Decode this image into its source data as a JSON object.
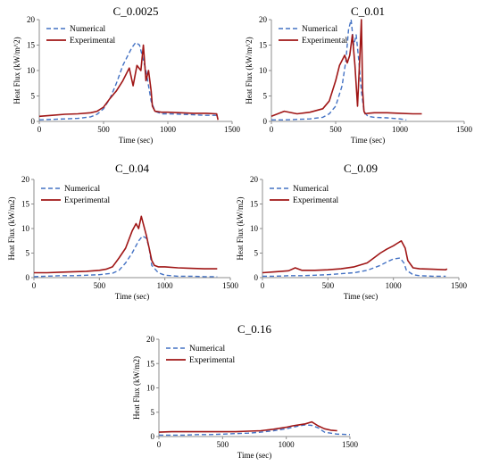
{
  "colors": {
    "numerical": "#4472c4",
    "experimental": "#a01616",
    "axis": "#8c8c8c"
  },
  "chart_data": [
    {
      "type": "line",
      "title": "C_0.0025",
      "xlabel": "Time (sec)",
      "ylabel": "Heat Flux (kW/m^2)",
      "xlim": [
        0,
        1500
      ],
      "ylim": [
        0,
        20
      ],
      "xticks": [
        "0",
        "500",
        "1000",
        "1500"
      ],
      "yticks": [
        "0",
        "5",
        "10",
        "15",
        "20"
      ],
      "legend_position": "top-left",
      "series": [
        {
          "name": "Numerical",
          "style": "dashed",
          "x": [
            0,
            100,
            200,
            300,
            400,
            450,
            500,
            550,
            600,
            650,
            700,
            720,
            750,
            780,
            800,
            830,
            850,
            870,
            900,
            950,
            1000,
            1100,
            1200,
            1300,
            1400
          ],
          "y": [
            0.3,
            0.4,
            0.5,
            0.6,
            0.9,
            1.4,
            2.5,
            4.5,
            7.5,
            11.0,
            13.5,
            14.5,
            15.5,
            15.0,
            13.0,
            10.0,
            7.0,
            4.0,
            2.0,
            1.5,
            1.5,
            1.4,
            1.3,
            1.2,
            1.2
          ]
        },
        {
          "name": "Experimental",
          "style": "solid",
          "x": [
            0,
            100,
            200,
            300,
            400,
            450,
            500,
            550,
            600,
            650,
            700,
            730,
            760,
            790,
            810,
            830,
            850,
            870,
            880,
            900,
            950,
            1000,
            1100,
            1200,
            1300,
            1380,
            1390
          ],
          "y": [
            1.0,
            1.2,
            1.4,
            1.5,
            1.7,
            2.0,
            2.8,
            4.5,
            6.0,
            8.0,
            10.5,
            7.0,
            11.0,
            10.0,
            15.0,
            8.0,
            10.0,
            6.0,
            3.0,
            2.0,
            1.8,
            1.8,
            1.7,
            1.6,
            1.6,
            1.5,
            0.3
          ]
        }
      ]
    },
    {
      "type": "line",
      "title": "C_0.01",
      "xlabel": "Time (sec)",
      "ylabel": "Heat Flux (kW/m^2)",
      "xlim": [
        0,
        1500
      ],
      "ylim": [
        0,
        20
      ],
      "xticks": [
        "0",
        "500",
        "1000",
        "1500"
      ],
      "yticks": [
        "0",
        "5",
        "10",
        "15",
        "20"
      ],
      "legend_position": "top-left",
      "series": [
        {
          "name": "Numerical",
          "style": "dashed",
          "x": [
            0,
            100,
            200,
            300,
            400,
            450,
            500,
            550,
            580,
            600,
            620,
            640,
            660,
            680,
            700,
            720,
            750,
            800,
            900,
            1000,
            1050
          ],
          "y": [
            0.3,
            0.3,
            0.4,
            0.5,
            0.8,
            1.5,
            3.0,
            7.0,
            12.0,
            18.0,
            20.0,
            15.0,
            17.0,
            12.0,
            6.0,
            2.0,
            1.0,
            0.8,
            0.7,
            0.5,
            0.3
          ]
        },
        {
          "name": "Experimental",
          "style": "solid",
          "x": [
            0,
            100,
            200,
            300,
            400,
            450,
            500,
            530,
            550,
            570,
            590,
            610,
            630,
            650,
            670,
            690,
            700,
            710,
            720,
            730,
            750,
            800,
            900,
            1000,
            1100,
            1170
          ],
          "y": [
            1.0,
            2.0,
            1.5,
            1.8,
            2.5,
            4.0,
            8.0,
            11.0,
            12.0,
            13.0,
            11.5,
            13.0,
            17.0,
            11.0,
            3.0,
            14.0,
            20.0,
            6.0,
            2.0,
            1.5,
            1.6,
            1.7,
            1.7,
            1.6,
            1.5,
            1.5
          ]
        }
      ]
    },
    {
      "type": "line",
      "title": "C_0.04",
      "xlabel": "Time (sec)",
      "ylabel": "Heat Flux (kW/m2)",
      "xlim": [
        0,
        1500
      ],
      "ylim": [
        0,
        20
      ],
      "xticks": [
        "0",
        "500",
        "1000",
        "1500"
      ],
      "yticks": [
        "0",
        "5",
        "10",
        "15",
        "20"
      ],
      "legend_position": "top-left",
      "series": [
        {
          "name": "Numerical",
          "style": "dashed",
          "x": [
            0,
            100,
            200,
            300,
            400,
            500,
            600,
            650,
            700,
            750,
            800,
            830,
            860,
            880,
            900,
            950,
            1000,
            1100,
            1200,
            1300,
            1400
          ],
          "y": [
            0.2,
            0.3,
            0.4,
            0.4,
            0.5,
            0.6,
            0.9,
            1.5,
            3.0,
            5.0,
            7.5,
            8.5,
            8.0,
            6.0,
            2.5,
            1.0,
            0.5,
            0.3,
            0.3,
            0.2,
            0.2
          ]
        },
        {
          "name": "Experimental",
          "style": "solid",
          "x": [
            0,
            100,
            200,
            300,
            400,
            500,
            550,
            600,
            650,
            700,
            750,
            780,
            800,
            820,
            840,
            860,
            880,
            900,
            920,
            950,
            1000,
            1100,
            1200,
            1300,
            1400
          ],
          "y": [
            1.0,
            1.0,
            1.1,
            1.2,
            1.3,
            1.5,
            1.7,
            2.2,
            4.0,
            6.0,
            9.5,
            11.0,
            10.0,
            12.5,
            10.5,
            8.5,
            6.0,
            3.5,
            2.5,
            2.2,
            2.2,
            2.0,
            1.9,
            1.8,
            1.8
          ]
        }
      ]
    },
    {
      "type": "line",
      "title": "C_0.09",
      "xlabel": "Time (sec)",
      "ylabel": "Heat Flux (kW/m2)",
      "xlim": [
        0,
        1500
      ],
      "ylim": [
        0,
        20
      ],
      "xticks": [
        "0",
        "500",
        "1000",
        "1500"
      ],
      "yticks": [
        "0",
        "5",
        "10",
        "15",
        "20"
      ],
      "legend_position": "top-left",
      "series": [
        {
          "name": "Numerical",
          "style": "dashed",
          "x": [
            0,
            100,
            200,
            300,
            400,
            500,
            600,
            700,
            800,
            900,
            950,
            1000,
            1050,
            1080,
            1100,
            1150,
            1200,
            1300,
            1400
          ],
          "y": [
            0.3,
            0.3,
            0.4,
            0.4,
            0.5,
            0.6,
            0.8,
            1.0,
            1.5,
            2.5,
            3.2,
            3.8,
            4.0,
            3.0,
            1.5,
            0.6,
            0.4,
            0.3,
            0.3
          ]
        },
        {
          "name": "Experimental",
          "style": "solid",
          "x": [
            0,
            100,
            200,
            250,
            300,
            400,
            500,
            600,
            700,
            800,
            850,
            900,
            950,
            1000,
            1030,
            1060,
            1090,
            1110,
            1150,
            1200,
            1300,
            1400,
            1410
          ],
          "y": [
            1.0,
            1.2,
            1.4,
            2.0,
            1.5,
            1.5,
            1.6,
            1.8,
            2.2,
            3.0,
            4.0,
            5.0,
            5.8,
            6.5,
            7.0,
            7.5,
            6.0,
            3.5,
            2.0,
            1.8,
            1.7,
            1.6,
            1.8
          ]
        }
      ]
    },
    {
      "type": "line",
      "title": "C_0.16",
      "xlabel": "Time (sec)",
      "ylabel": "Heat Flux (kW/m2)",
      "xlim": [
        0,
        1500
      ],
      "ylim": [
        0,
        20
      ],
      "xticks": [
        "0",
        "500",
        "1000",
        "1500"
      ],
      "yticks": [
        "0",
        "5",
        "10",
        "15",
        "20"
      ],
      "legend_position": "top-left",
      "series": [
        {
          "name": "Numerical",
          "style": "dashed",
          "x": [
            0,
            100,
            200,
            300,
            400,
            500,
            600,
            700,
            800,
            900,
            1000,
            1100,
            1150,
            1200,
            1250,
            1300,
            1400,
            1500
          ],
          "y": [
            0.3,
            0.3,
            0.3,
            0.4,
            0.4,
            0.5,
            0.6,
            0.7,
            0.9,
            1.2,
            1.6,
            2.2,
            2.4,
            2.3,
            1.8,
            0.9,
            0.5,
            0.4
          ]
        },
        {
          "name": "Experimental",
          "style": "solid",
          "x": [
            0,
            100,
            200,
            300,
            400,
            500,
            600,
            700,
            800,
            900,
            1000,
            1050,
            1100,
            1150,
            1200,
            1250,
            1300,
            1350,
            1400
          ],
          "y": [
            0.9,
            1.0,
            1.0,
            1.0,
            1.0,
            1.0,
            1.0,
            1.1,
            1.2,
            1.5,
            1.9,
            2.2,
            2.4,
            2.6,
            3.0,
            2.2,
            1.6,
            1.3,
            1.2
          ]
        }
      ]
    }
  ]
}
